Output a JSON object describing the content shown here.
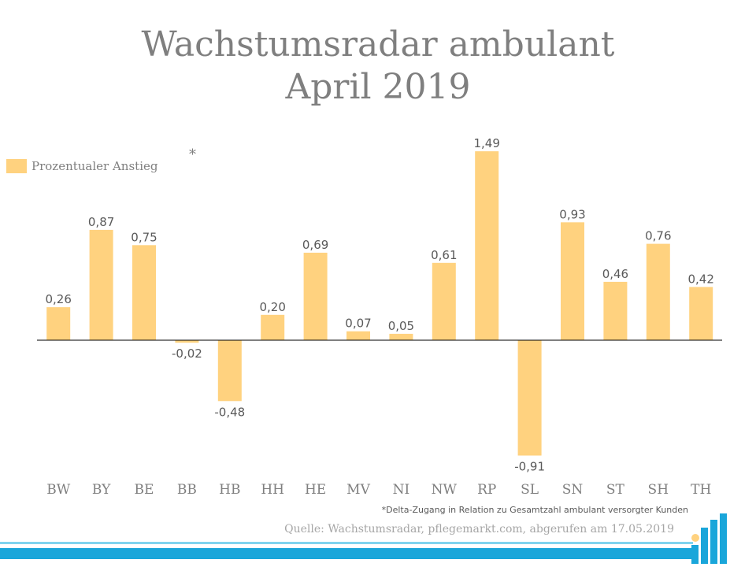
{
  "title": {
    "line1": "Wachstumsradar ambulant",
    "line2": "April 2019"
  },
  "legend": {
    "label": "Prozentualer Anstieg",
    "marker": "*"
  },
  "footnote": "*Delta-Zugang in Relation zu Gesamtzahl ambulant versorgter Kunden",
  "source": "Quelle: Wachstumsradar, pflegemarkt.com, abgerufen am 17.05.2019",
  "colors": {
    "bar": "#ffd27f",
    "text": "#7f7f7f",
    "axis": "#000000",
    "band_light": "#7fd3ee",
    "band_dark": "#1aa6da"
  },
  "logo_icon": "bar-chart-logo-icon",
  "chart_data": {
    "type": "bar",
    "categories": [
      "BW",
      "BY",
      "BE",
      "BB",
      "HB",
      "HH",
      "HE",
      "MV",
      "NI",
      "NW",
      "RP",
      "SL",
      "SN",
      "ST",
      "SH",
      "TH"
    ],
    "series": [
      {
        "name": "Prozentualer Anstieg",
        "values": [
          0.26,
          0.87,
          0.75,
          -0.02,
          -0.48,
          0.2,
          0.69,
          0.07,
          0.05,
          0.61,
          1.49,
          -0.91,
          0.93,
          0.46,
          0.76,
          0.42
        ],
        "labels": [
          "0,26",
          "0,87",
          "0,75",
          "-0,02",
          "-0,48",
          "0,20",
          "0,69",
          "0,07",
          "0,05",
          "0,61",
          "1,49",
          "-0,91",
          "0,93",
          "0,46",
          "0,76",
          "0,42"
        ]
      }
    ],
    "ylim": [
      -0.91,
      1.49
    ],
    "grid": false,
    "legend_position": "top-left"
  }
}
